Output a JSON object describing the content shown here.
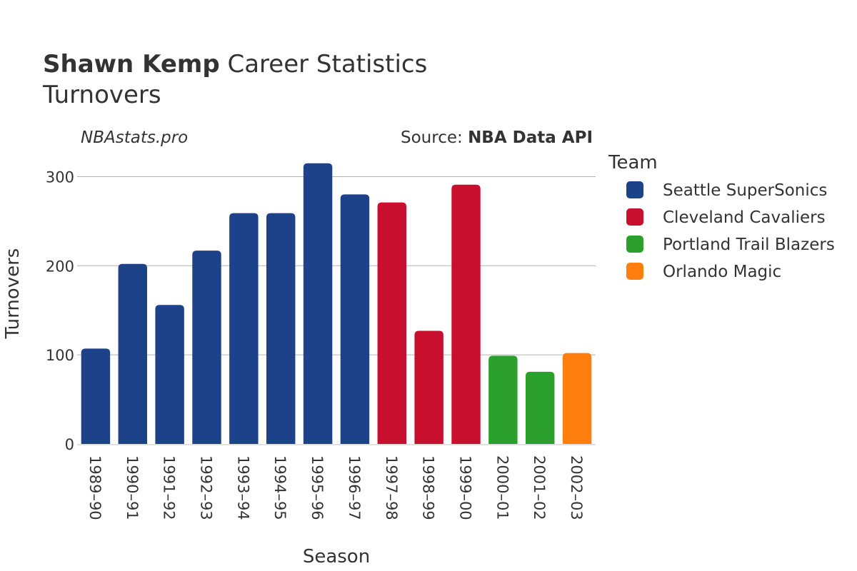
{
  "header": {
    "player_name": "Shawn Kemp",
    "title_rest": " Career Statistics",
    "subtitle": "Turnovers"
  },
  "watermark": "NBAstats.pro",
  "source": {
    "prefix": "Source: ",
    "name": "NBA Data API"
  },
  "legend": {
    "title": "Team",
    "placement": "right"
  },
  "chart_data": {
    "type": "bar",
    "xlabel": "Season",
    "ylabel": "Turnovers",
    "ylim": [
      0,
      330
    ],
    "yticks": [
      0,
      100,
      200,
      300
    ],
    "grid": true,
    "categories": [
      "1989–90",
      "1990–91",
      "1991–92",
      "1992–93",
      "1993–94",
      "1994–95",
      "1995–96",
      "1996–97",
      "1997–98",
      "1998–99",
      "1999–00",
      "2000–01",
      "2001–02",
      "2002–03"
    ],
    "values": [
      107,
      202,
      156,
      217,
      259,
      259,
      315,
      280,
      271,
      127,
      291,
      99,
      81,
      102
    ],
    "teams": [
      "Seattle SuperSonics",
      "Seattle SuperSonics",
      "Seattle SuperSonics",
      "Seattle SuperSonics",
      "Seattle SuperSonics",
      "Seattle SuperSonics",
      "Seattle SuperSonics",
      "Seattle SuperSonics",
      "Cleveland Cavaliers",
      "Cleveland Cavaliers",
      "Cleveland Cavaliers",
      "Portland Trail Blazers",
      "Portland Trail Blazers",
      "Orlando Magic"
    ],
    "series": [
      {
        "name": "Seattle SuperSonics",
        "color": "#1d428a"
      },
      {
        "name": "Cleveland Cavaliers",
        "color": "#c8102e"
      },
      {
        "name": "Portland Trail Blazers",
        "color": "#2ca02c"
      },
      {
        "name": "Orlando Magic",
        "color": "#ff7f0e"
      }
    ]
  }
}
